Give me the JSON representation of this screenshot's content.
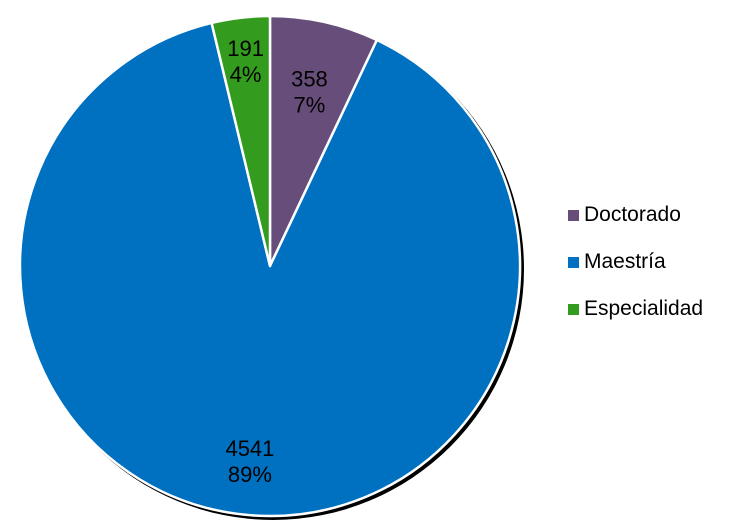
{
  "chart_data": {
    "type": "pie",
    "categories": [
      "Doctorado",
      "Maestría",
      "Especialidad"
    ],
    "values": [
      358,
      4541,
      191
    ],
    "percent_labels": [
      "7%",
      "89%",
      "4%"
    ],
    "colors": [
      "#664D7A",
      "#0070C0",
      "#339B1E"
    ],
    "slice_order": [
      "Doctorado",
      "Maestría",
      "Especialidad"
    ],
    "start_angle": "12 o'clock, clockwise",
    "legend_position": "right"
  },
  "legend": {
    "items": [
      {
        "label": "Doctorado",
        "color": "#664D7A"
      },
      {
        "label": "Maestría",
        "color": "#0070C0"
      },
      {
        "label": "Especialidad",
        "color": "#339B1E"
      }
    ]
  }
}
